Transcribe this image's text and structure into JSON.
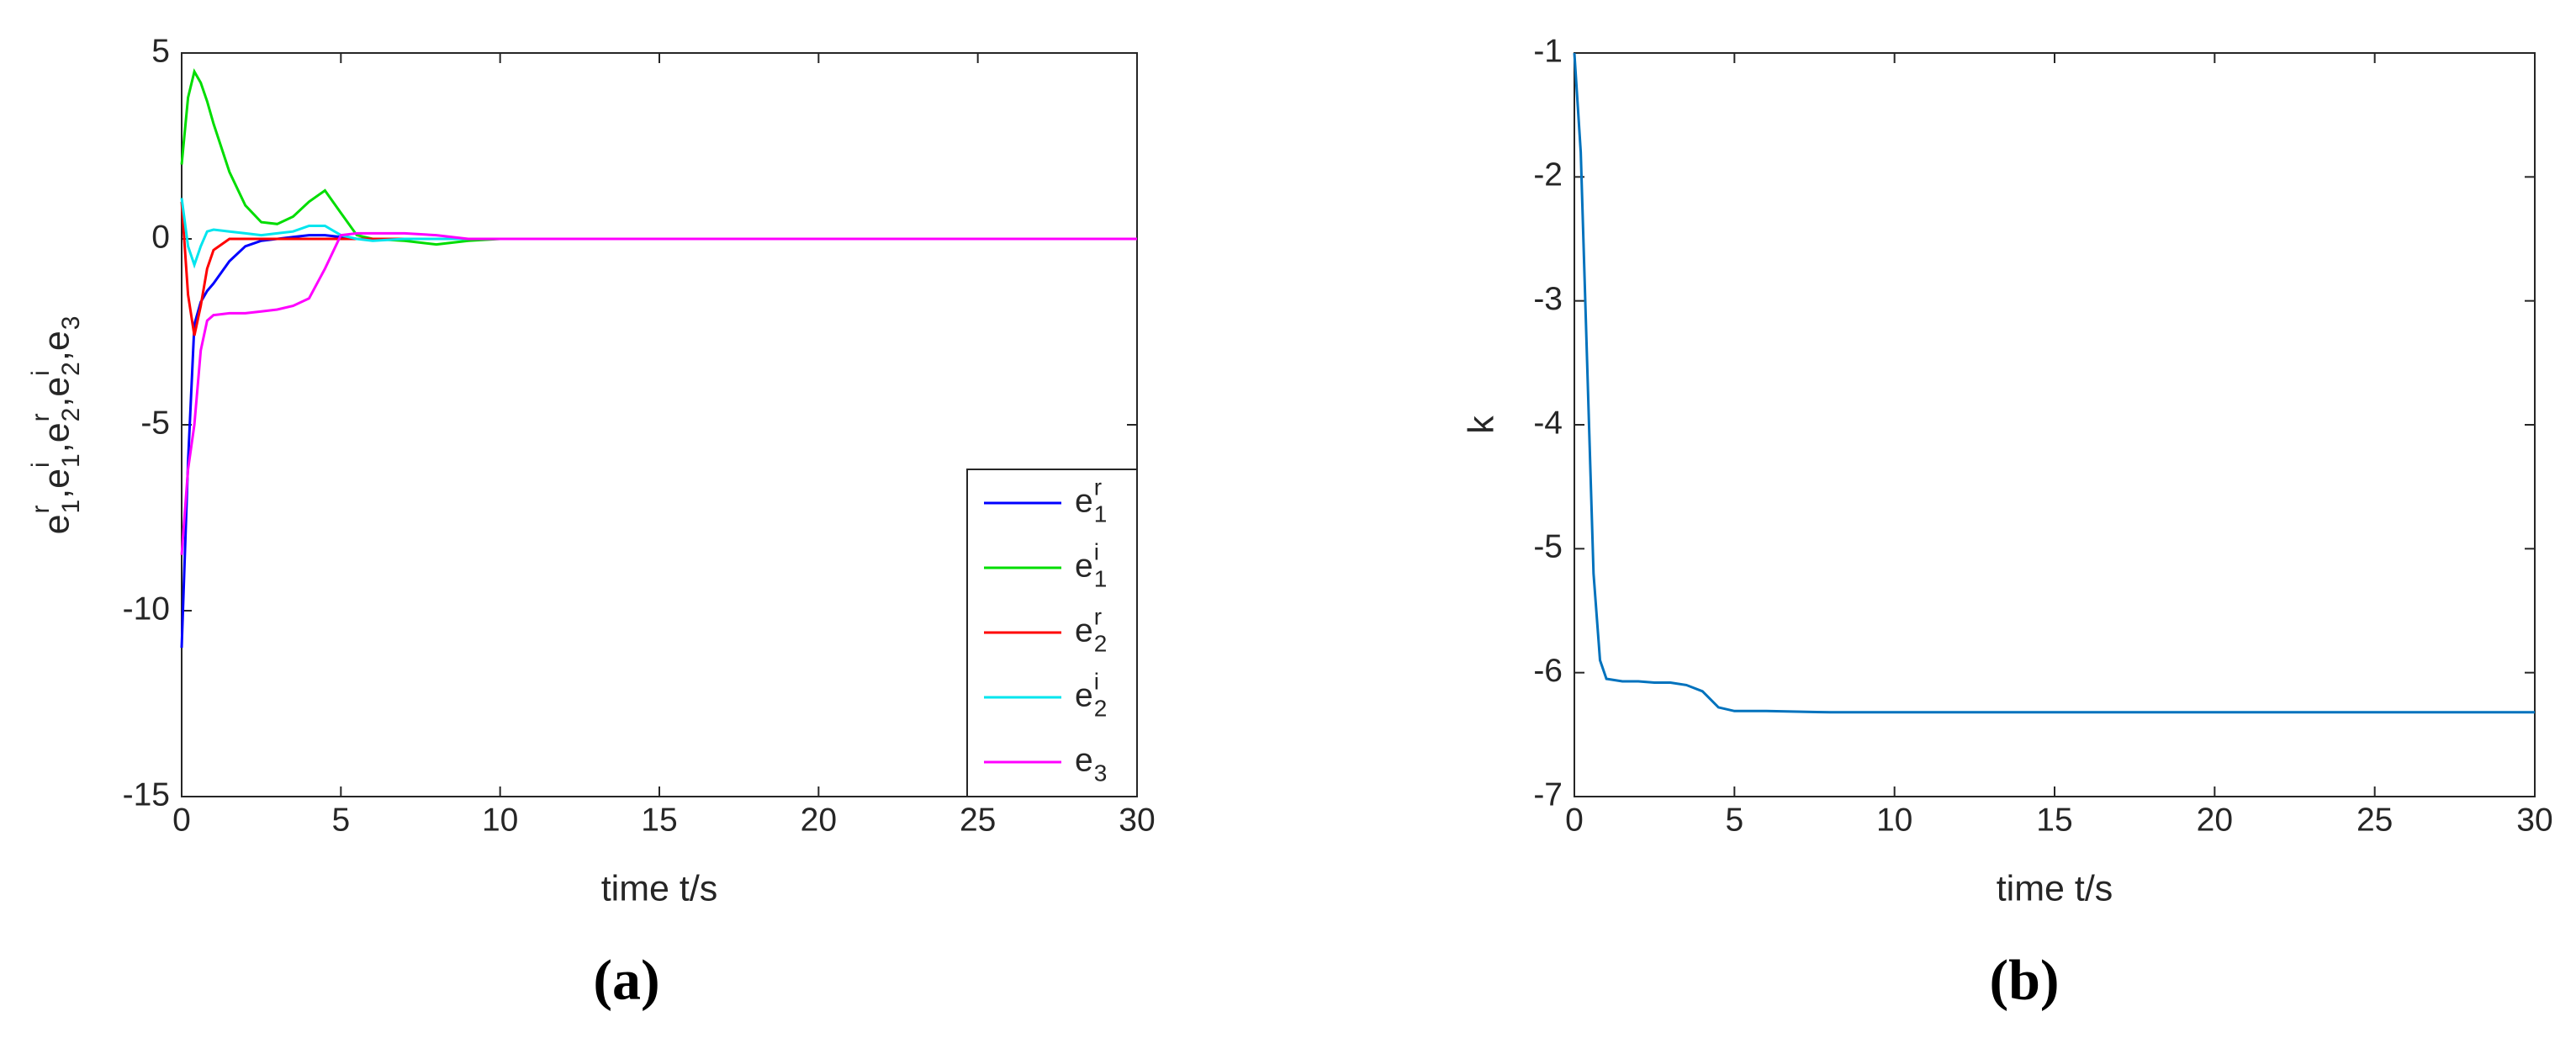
{
  "chart_data": [
    {
      "type": "line",
      "caption": "(a)",
      "xlabel": "time t/s",
      "ylabel": [
        {
          "base": "e",
          "sub": "1",
          "sup": "r"
        },
        {
          "base": "e",
          "sub": "1",
          "sup": "i"
        },
        {
          "base": "e",
          "sub": "2",
          "sup": "r"
        },
        {
          "base": "e",
          "sub": "2",
          "sup": "i"
        },
        {
          "base": "e",
          "sub": "3"
        }
      ],
      "ylabel_separator": ",",
      "xlim": [
        0,
        30
      ],
      "ylim": [
        -15,
        5
      ],
      "xticks": [
        0,
        5,
        10,
        15,
        20,
        25,
        30
      ],
      "yticks": [
        -15,
        -10,
        -5,
        0,
        5
      ],
      "legend": "lower right",
      "grid": false,
      "x": [
        0,
        0.2,
        0.4,
        0.6,
        0.8,
        1,
        1.5,
        2,
        2.5,
        3,
        3.5,
        4,
        4.5,
        5,
        5.5,
        6,
        7,
        8,
        9,
        10,
        12,
        15,
        20,
        25,
        30
      ],
      "series": [
        {
          "name": "e",
          "name_sub": "1",
          "name_sup": "r",
          "color": "#0000ff",
          "values": [
            -11,
            -6,
            -2.3,
            -1.7,
            -1.4,
            -1.2,
            -0.6,
            -0.2,
            -0.05,
            0,
            0.05,
            0.1,
            0.1,
            0.05,
            0,
            0,
            0,
            0,
            0,
            0,
            0,
            0,
            0,
            0,
            0
          ]
        },
        {
          "name": "e",
          "name_sub": "1",
          "name_sup": "i",
          "color": "#00dd00",
          "values": [
            2,
            3.8,
            4.5,
            4.2,
            3.7,
            3.1,
            1.8,
            0.9,
            0.45,
            0.4,
            0.6,
            1.0,
            1.3,
            0.7,
            0.1,
            0,
            -0.05,
            -0.15,
            -0.05,
            0,
            0,
            0,
            0,
            0,
            0
          ]
        },
        {
          "name": "e",
          "name_sub": "2",
          "name_sup": "r",
          "color": "#ff0000",
          "values": [
            1,
            -1.5,
            -2.6,
            -1.8,
            -0.8,
            -0.3,
            0,
            0,
            0,
            0,
            0,
            0,
            0,
            0,
            0,
            0,
            0,
            0,
            0,
            0,
            0,
            0,
            0,
            0,
            0
          ]
        },
        {
          "name": "e",
          "name_sub": "2",
          "name_sup": "i",
          "color": "#00e5ee",
          "values": [
            1.1,
            -0.2,
            -0.7,
            -0.2,
            0.2,
            0.25,
            0.2,
            0.15,
            0.1,
            0.15,
            0.2,
            0.35,
            0.35,
            0.1,
            0,
            -0.05,
            0,
            0,
            0,
            0,
            0,
            0,
            0,
            0,
            0
          ]
        },
        {
          "name": "e",
          "name_sub": "3",
          "color": "#ff00ff",
          "values": [
            -8.5,
            -6.2,
            -5,
            -3,
            -2.2,
            -2.05,
            -2,
            -2,
            -1.95,
            -1.9,
            -1.8,
            -1.6,
            -0.8,
            0.1,
            0.15,
            0.15,
            0.15,
            0.1,
            0,
            0,
            0,
            0,
            0,
            0,
            0
          ]
        }
      ]
    },
    {
      "type": "line",
      "caption": "(b)",
      "xlabel": "time t/s",
      "ylabel": "k",
      "xlim": [
        0,
        30
      ],
      "ylim": [
        -7,
        -1
      ],
      "xticks": [
        0,
        5,
        10,
        15,
        20,
        25,
        30
      ],
      "yticks": [
        -7,
        -6,
        -5,
        -4,
        -3,
        -2,
        -1
      ],
      "grid": false,
      "x": [
        0,
        0.2,
        0.4,
        0.6,
        0.8,
        1,
        1.5,
        2,
        2.5,
        3,
        3.5,
        4,
        4.5,
        5,
        6,
        8,
        10,
        15,
        20,
        25,
        30
      ],
      "series": [
        {
          "color": "#0072bd",
          "values": [
            -1,
            -1.8,
            -3.5,
            -5.2,
            -5.9,
            -6.05,
            -6.07,
            -6.07,
            -6.08,
            -6.08,
            -6.1,
            -6.15,
            -6.28,
            -6.31,
            -6.31,
            -6.32,
            -6.32,
            -6.32,
            -6.32,
            -6.32,
            -6.32
          ]
        }
      ]
    }
  ]
}
